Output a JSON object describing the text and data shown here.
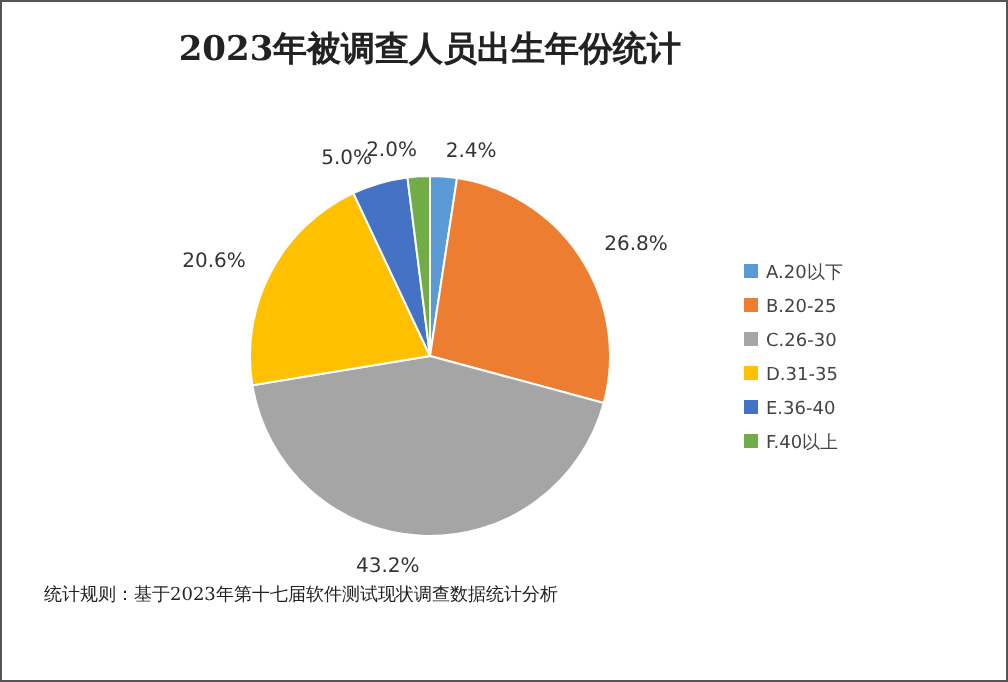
{
  "chart_data": {
    "type": "pie",
    "title": "2023年被调查人员出生年份统计",
    "categories": [
      "A.20以下",
      "B.20-25",
      "C.26-30",
      "D.31-35",
      "E.36-40",
      "F.40以上"
    ],
    "values": [
      2.4,
      26.8,
      43.2,
      20.6,
      5.0,
      2.0
    ],
    "colors": [
      "#5b9bd5",
      "#ed7d31",
      "#a5a5a5",
      "#ffc000",
      "#4472c4",
      "#70ad47"
    ],
    "value_labels": [
      "2.4%",
      "26.8%",
      "43.2%",
      "20.6%",
      "5.0%",
      "2.0%"
    ],
    "legend": "right",
    "annotations": [
      "统计规则：基于2023年第十七届软件测试现状调查数据统计分析"
    ]
  }
}
